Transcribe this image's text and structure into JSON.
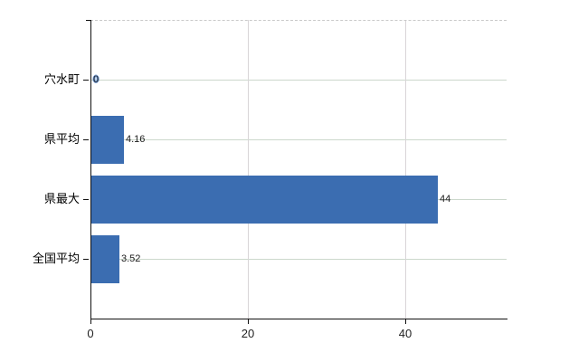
{
  "chart_data": {
    "type": "bar",
    "orientation": "horizontal",
    "title": "",
    "xlabel": "",
    "ylabel": "",
    "categories": [
      "穴水町",
      "県平均",
      "県最大",
      "全国平均"
    ],
    "values": [
      0,
      4.16,
      44,
      3.52
    ],
    "value_labels": [
      "0",
      "4.16",
      "44",
      "3.52"
    ],
    "x_ticks": [
      0,
      20,
      40
    ],
    "x_tick_labels": [
      "0",
      "20",
      "40"
    ],
    "xlim": [
      0,
      52.8
    ],
    "grid": true,
    "legend": false,
    "gridlines": {
      "horizontal": "solid, one per category",
      "vertical": "at 20 and 40",
      "top_border": "dashed"
    },
    "colors": {
      "bar": "#3b6db1",
      "zero_label_halo": "#6f9bd8",
      "horizontal_grid": "#ccd8cc",
      "vertical_grid": "#d9d5d8",
      "axis": "#111111",
      "top_border": "#c9c9c9",
      "text": "#000000",
      "background": "#ffffff"
    }
  }
}
